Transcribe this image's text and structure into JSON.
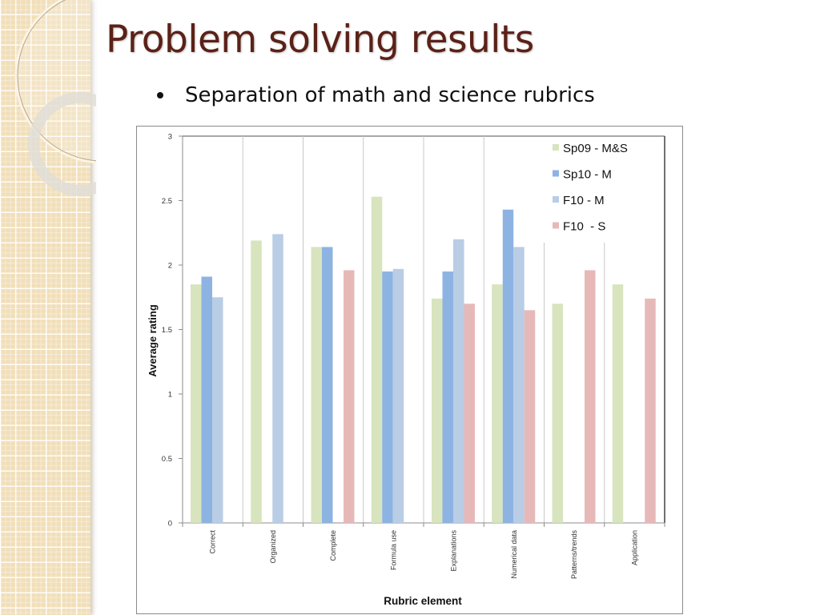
{
  "slide": {
    "title": "Problem solving results",
    "bullets": [
      "Separation of math and science rubrics"
    ]
  },
  "colors": {
    "title": "#5b2117",
    "Sp09 - M&S": "#d7e4bd",
    "Sp10 - M": "#8db3e2",
    "F10 - M": "#b9cde5",
    "F10  - S": "#e6b9b8",
    "side_band": "#f1dfba"
  },
  "chart_data": {
    "type": "bar",
    "title": "",
    "xlabel": "Rubric element",
    "ylabel": "Average rating",
    "ylim": [
      0,
      3
    ],
    "yticks": [
      0,
      0.5,
      1,
      1.5,
      2,
      2.5,
      3
    ],
    "grid": "vertical category separators",
    "legend_position": "top-right inside plot",
    "categories": [
      "Correct",
      "Organized",
      "Complete",
      "Formula use",
      "Explanations",
      "Numerical data",
      "Patterns/trends",
      "Application"
    ],
    "series": [
      {
        "name": "Sp09 - M&S",
        "color": "#d7e4bd",
        "values": [
          1.85,
          2.19,
          2.14,
          2.53,
          1.74,
          1.85,
          1.7,
          1.85
        ]
      },
      {
        "name": "Sp10 - M",
        "color": "#8db3e2",
        "values": [
          1.91,
          null,
          2.14,
          1.95,
          1.95,
          2.43,
          null,
          null
        ]
      },
      {
        "name": "F10 - M",
        "color": "#b9cde5",
        "values": [
          1.75,
          2.24,
          null,
          1.97,
          2.2,
          2.14,
          null,
          null
        ]
      },
      {
        "name": "F10  - S",
        "color": "#e6b9b8",
        "values": [
          null,
          null,
          1.96,
          null,
          1.7,
          1.65,
          1.96,
          1.74
        ]
      }
    ]
  }
}
